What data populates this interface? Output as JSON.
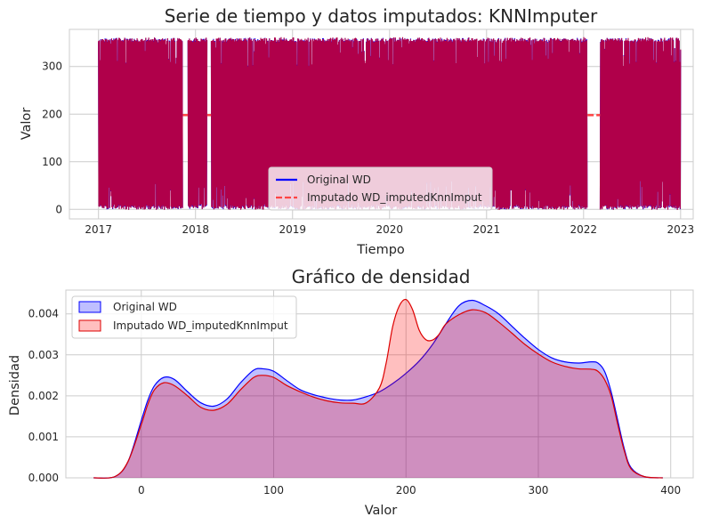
{
  "chart_data": [
    {
      "type": "line",
      "title": "Serie de tiempo y datos imputados: KNNImputer",
      "xlabel": "Tiempo",
      "ylabel": "Valor",
      "xlim": [
        2016.7,
        2023.13
      ],
      "ylim": [
        -20,
        378
      ],
      "xticks": [
        2017,
        2018,
        2019,
        2020,
        2021,
        2022,
        2023
      ],
      "yticks": [
        0,
        100,
        200,
        300
      ],
      "grid": true,
      "legend_position": "bottom-center",
      "series": [
        {
          "name": "Original WD",
          "color": "#0000ff",
          "style": "solid",
          "value_range": [
            0,
            360
          ],
          "gaps": [
            [
              2017.87,
              2017.92
            ],
            [
              2018.12,
              2018.16
            ],
            [
              2022.04,
              2022.17
            ]
          ]
        },
        {
          "name": "Imputado WD_imputedKnnImput",
          "color": "#b0004a",
          "style": "dashed",
          "value_range": [
            0,
            360
          ],
          "imputed_value": 198
        }
      ]
    },
    {
      "type": "area",
      "title": "Gráfico de densidad",
      "xlabel": "Valor",
      "ylabel": "Densidad",
      "xlim": [
        -57,
        417
      ],
      "ylim": [
        0,
        0.00458
      ],
      "xticks": [
        0,
        100,
        200,
        300,
        400
      ],
      "yticks": [
        0.0,
        0.001,
        0.002,
        0.003,
        0.004
      ],
      "ytick_labels": [
        "0.000",
        "0.001",
        "0.002",
        "0.003",
        "0.004"
      ],
      "grid": true,
      "legend_position": "top-left",
      "series": [
        {
          "name": "Original WD",
          "color": "#0000ff",
          "fill": "#0000ff",
          "x": [
            -36,
            -20,
            -10,
            0,
            5,
            10,
            17,
            25,
            35,
            45,
            55,
            65,
            75,
            85,
            92,
            100,
            110,
            120,
            130,
            140,
            150,
            160,
            170,
            180,
            190,
            200,
            210,
            220,
            230,
            240,
            250,
            260,
            270,
            280,
            290,
            300,
            310,
            320,
            330,
            340,
            345,
            350,
            355,
            360,
            365,
            370,
            380,
            394
          ],
          "y": [
            0,
            3e-05,
            0.0004,
            0.0014,
            0.0019,
            0.00225,
            0.00245,
            0.0024,
            0.0021,
            0.00183,
            0.00175,
            0.00193,
            0.00232,
            0.00263,
            0.00266,
            0.0026,
            0.00237,
            0.00215,
            0.00203,
            0.00195,
            0.0019,
            0.0019,
            0.00198,
            0.0021,
            0.0023,
            0.00255,
            0.00285,
            0.00325,
            0.00375,
            0.0042,
            0.00433,
            0.0042,
            0.004,
            0.0037,
            0.0034,
            0.00313,
            0.00293,
            0.00283,
            0.0028,
            0.00283,
            0.0028,
            0.0026,
            0.0021,
            0.0014,
            0.0007,
            0.00025,
            3e-05,
            0
          ]
        },
        {
          "name": "Imputado WD_imputedKnnImput",
          "color": "#dd0000",
          "fill": "#ff0000",
          "x": [
            -36,
            -20,
            -10,
            0,
            5,
            10,
            17,
            25,
            35,
            45,
            55,
            65,
            75,
            85,
            92,
            100,
            110,
            120,
            130,
            140,
            150,
            160,
            170,
            180,
            185,
            190,
            195,
            200,
            205,
            210,
            215,
            220,
            225,
            230,
            240,
            250,
            260,
            270,
            280,
            290,
            300,
            310,
            320,
            330,
            340,
            345,
            350,
            355,
            360,
            365,
            370,
            380,
            394
          ],
          "y": [
            0,
            3e-05,
            0.0004,
            0.0013,
            0.0018,
            0.00215,
            0.00232,
            0.00225,
            0.002,
            0.00172,
            0.00165,
            0.0018,
            0.00215,
            0.00245,
            0.0025,
            0.00245,
            0.00225,
            0.0021,
            0.00197,
            0.00188,
            0.00183,
            0.00182,
            0.00183,
            0.0022,
            0.0028,
            0.0037,
            0.0042,
            0.00435,
            0.0041,
            0.0036,
            0.00337,
            0.00336,
            0.0035,
            0.00375,
            0.00398,
            0.0041,
            0.00403,
            0.0038,
            0.00353,
            0.00325,
            0.00302,
            0.00283,
            0.00272,
            0.00266,
            0.00265,
            0.0026,
            0.0024,
            0.002,
            0.0013,
            0.00065,
            0.00022,
            3e-05,
            0
          ]
        }
      ]
    }
  ]
}
